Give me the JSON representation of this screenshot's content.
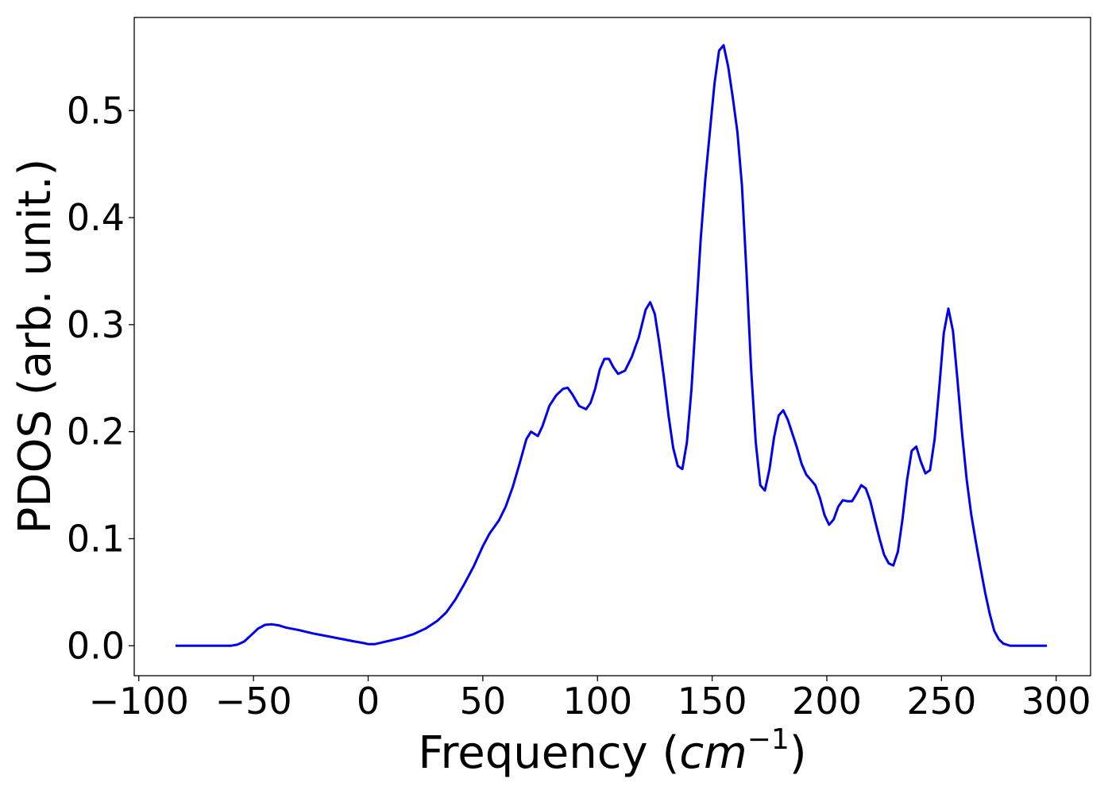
{
  "chart_data": {
    "type": "line",
    "title": "",
    "xlabel": "Frequency",
    "xlabel_unit_base": "cm",
    "xlabel_unit_exp": "−1",
    "ylabel": "PDOS (arb. unit.)",
    "xlim": [
      -102,
      315
    ],
    "ylim": [
      -0.028,
      0.587
    ],
    "xticks": [
      -100,
      -50,
      0,
      50,
      100,
      150,
      200,
      250,
      300
    ],
    "xtick_labels": [
      "−100",
      "−50",
      "0",
      "50",
      "100",
      "150",
      "200",
      "250",
      "300"
    ],
    "yticks": [
      0.0,
      0.1,
      0.2,
      0.3,
      0.4,
      0.5
    ],
    "ytick_labels": [
      "0.0",
      "0.1",
      "0.2",
      "0.3",
      "0.4",
      "0.5"
    ],
    "grid": false,
    "series": [
      {
        "color": "#0000ee",
        "points": [
          [
            -84,
            0.0
          ],
          [
            -60,
            0.0
          ],
          [
            -57,
            0.001
          ],
          [
            -54,
            0.004
          ],
          [
            -51,
            0.01
          ],
          [
            -48,
            0.016
          ],
          [
            -45,
            0.0195
          ],
          [
            -42,
            0.02
          ],
          [
            -39,
            0.019
          ],
          [
            -36,
            0.017
          ],
          [
            -30,
            0.0145
          ],
          [
            -24,
            0.0115
          ],
          [
            -18,
            0.009
          ],
          [
            -12,
            0.0065
          ],
          [
            -6,
            0.004
          ],
          [
            -2,
            0.0025
          ],
          [
            0,
            0.0015
          ],
          [
            3,
            0.0015
          ],
          [
            6,
            0.003
          ],
          [
            10,
            0.005
          ],
          [
            15,
            0.0075
          ],
          [
            20,
            0.011
          ],
          [
            25,
            0.016
          ],
          [
            30,
            0.023
          ],
          [
            34,
            0.031
          ],
          [
            38,
            0.043
          ],
          [
            42,
            0.058
          ],
          [
            46,
            0.074
          ],
          [
            50,
            0.093
          ],
          [
            53,
            0.105
          ],
          [
            57,
            0.117
          ],
          [
            60,
            0.13
          ],
          [
            63,
            0.148
          ],
          [
            66,
            0.17
          ],
          [
            69,
            0.193
          ],
          [
            71,
            0.2
          ],
          [
            74,
            0.196
          ],
          [
            76,
            0.205
          ],
          [
            79,
            0.224
          ],
          [
            82,
            0.234
          ],
          [
            85,
            0.24
          ],
          [
            87,
            0.241
          ],
          [
            89,
            0.235
          ],
          [
            92,
            0.224
          ],
          [
            95,
            0.221
          ],
          [
            97,
            0.227
          ],
          [
            99,
            0.24
          ],
          [
            101,
            0.258
          ],
          [
            103,
            0.268
          ],
          [
            105,
            0.268
          ],
          [
            107,
            0.26
          ],
          [
            109,
            0.254
          ],
          [
            112,
            0.257
          ],
          [
            115,
            0.27
          ],
          [
            118,
            0.288
          ],
          [
            121,
            0.314
          ],
          [
            123,
            0.321
          ],
          [
            125,
            0.31
          ],
          [
            127,
            0.282
          ],
          [
            129,
            0.25
          ],
          [
            131,
            0.215
          ],
          [
            133,
            0.185
          ],
          [
            135,
            0.168
          ],
          [
            137,
            0.165
          ],
          [
            139,
            0.19
          ],
          [
            141,
            0.24
          ],
          [
            143,
            0.31
          ],
          [
            145,
            0.38
          ],
          [
            147,
            0.435
          ],
          [
            149,
            0.48
          ],
          [
            151,
            0.525
          ],
          [
            153,
            0.556
          ],
          [
            155,
            0.561
          ],
          [
            157,
            0.541
          ],
          [
            159,
            0.512
          ],
          [
            161,
            0.48
          ],
          [
            163,
            0.43
          ],
          [
            165,
            0.348
          ],
          [
            167,
            0.258
          ],
          [
            169,
            0.19
          ],
          [
            171,
            0.15
          ],
          [
            173,
            0.145
          ],
          [
            175,
            0.165
          ],
          [
            177,
            0.195
          ],
          [
            179,
            0.215
          ],
          [
            181,
            0.22
          ],
          [
            183,
            0.211
          ],
          [
            185,
            0.198
          ],
          [
            187,
            0.185
          ],
          [
            189,
            0.17
          ],
          [
            191,
            0.16
          ],
          [
            193,
            0.155
          ],
          [
            195,
            0.15
          ],
          [
            197,
            0.138
          ],
          [
            199,
            0.122
          ],
          [
            201,
            0.113
          ],
          [
            203,
            0.118
          ],
          [
            205,
            0.13
          ],
          [
            207,
            0.136
          ],
          [
            209,
            0.135
          ],
          [
            211,
            0.135
          ],
          [
            213,
            0.142
          ],
          [
            215,
            0.15
          ],
          [
            217,
            0.147
          ],
          [
            219,
            0.135
          ],
          [
            221,
            0.117
          ],
          [
            223,
            0.1
          ],
          [
            225,
            0.085
          ],
          [
            227,
            0.077
          ],
          [
            229,
            0.075
          ],
          [
            231,
            0.088
          ],
          [
            233,
            0.118
          ],
          [
            235,
            0.155
          ],
          [
            237,
            0.182
          ],
          [
            239,
            0.186
          ],
          [
            241,
            0.172
          ],
          [
            243,
            0.161
          ],
          [
            245,
            0.164
          ],
          [
            247,
            0.193
          ],
          [
            249,
            0.24
          ],
          [
            251,
            0.292
          ],
          [
            253,
            0.315
          ],
          [
            255,
            0.294
          ],
          [
            257,
            0.248
          ],
          [
            259,
            0.198
          ],
          [
            261,
            0.155
          ],
          [
            263,
            0.122
          ],
          [
            265,
            0.097
          ],
          [
            267,
            0.073
          ],
          [
            269,
            0.05
          ],
          [
            271,
            0.03
          ],
          [
            273,
            0.014
          ],
          [
            275,
            0.006
          ],
          [
            277,
            0.002
          ],
          [
            280,
            0.0
          ],
          [
            296,
            0.0
          ]
        ]
      }
    ]
  }
}
